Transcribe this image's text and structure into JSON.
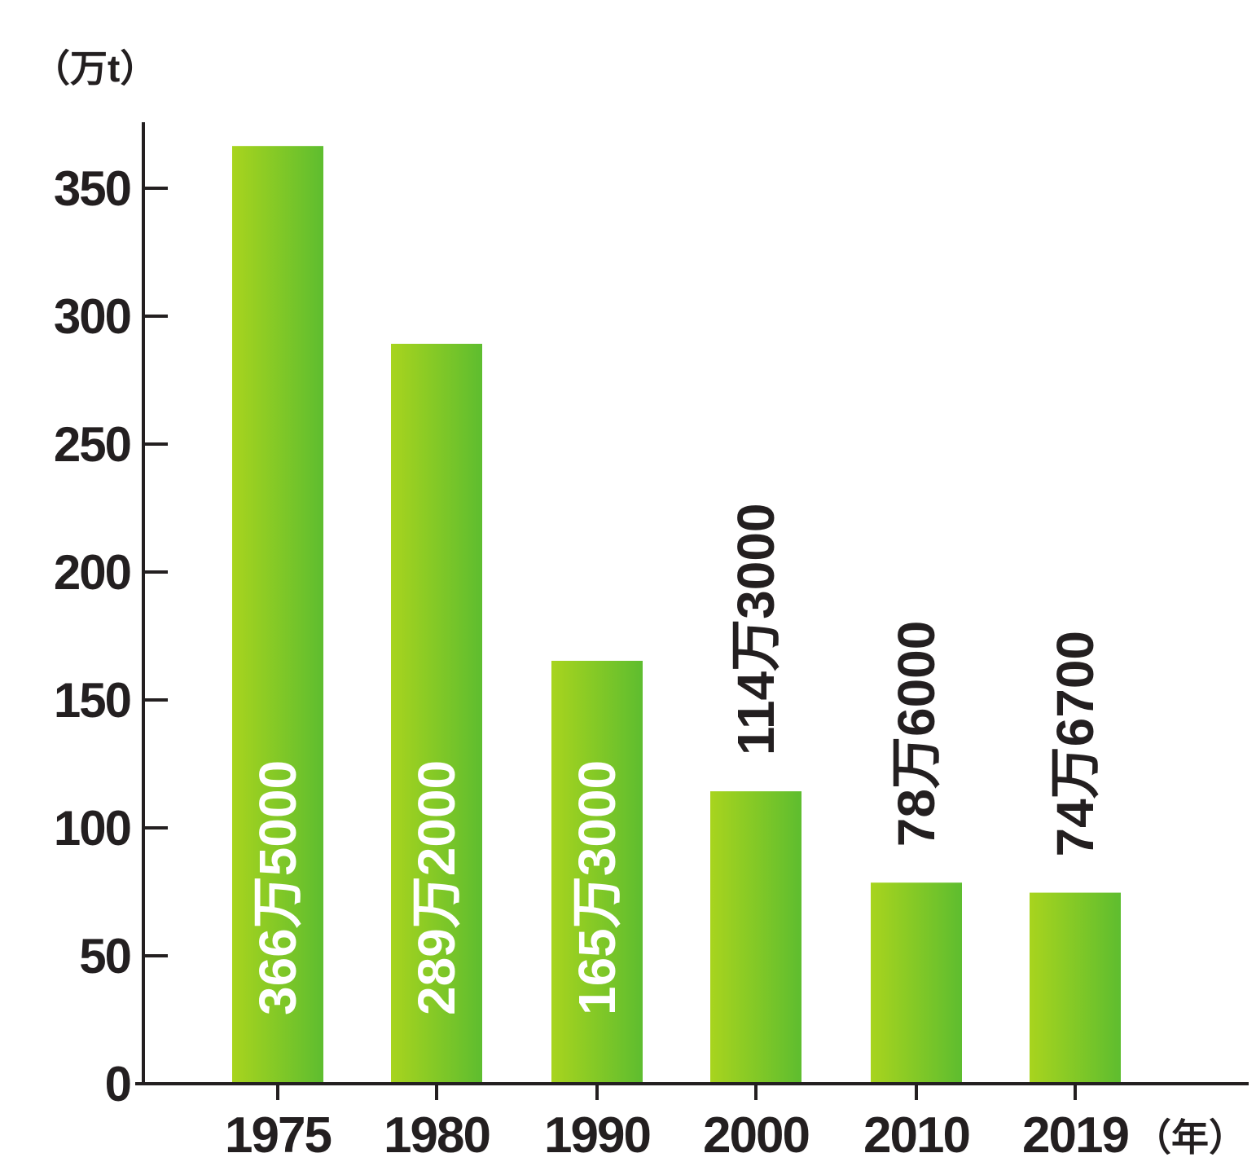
{
  "chart_data": {
    "type": "bar",
    "y_unit": "（万t）",
    "x_unit": "（年）",
    "categories": [
      "1975",
      "1980",
      "1990",
      "2000",
      "2010",
      "2019"
    ],
    "values": [
      366.5,
      289.2,
      165.3,
      114.3,
      78.6,
      74.67
    ],
    "data_labels": [
      "366万5000",
      "289万2000",
      "165万3000",
      "114万3000",
      "78万6000",
      "74万6700"
    ],
    "label_inside": [
      true,
      true,
      true,
      false,
      false,
      false
    ],
    "ylim": [
      0,
      370
    ],
    "yticks": [
      0,
      50,
      100,
      150,
      200,
      250,
      300,
      350
    ],
    "grid": false,
    "legend": "none",
    "colors": {
      "bar_light": "#a8d41e",
      "bar_dark": "#5ebd2f",
      "axis": "#231f20",
      "text": "#231f20",
      "inside_label": "#ffffff"
    }
  }
}
